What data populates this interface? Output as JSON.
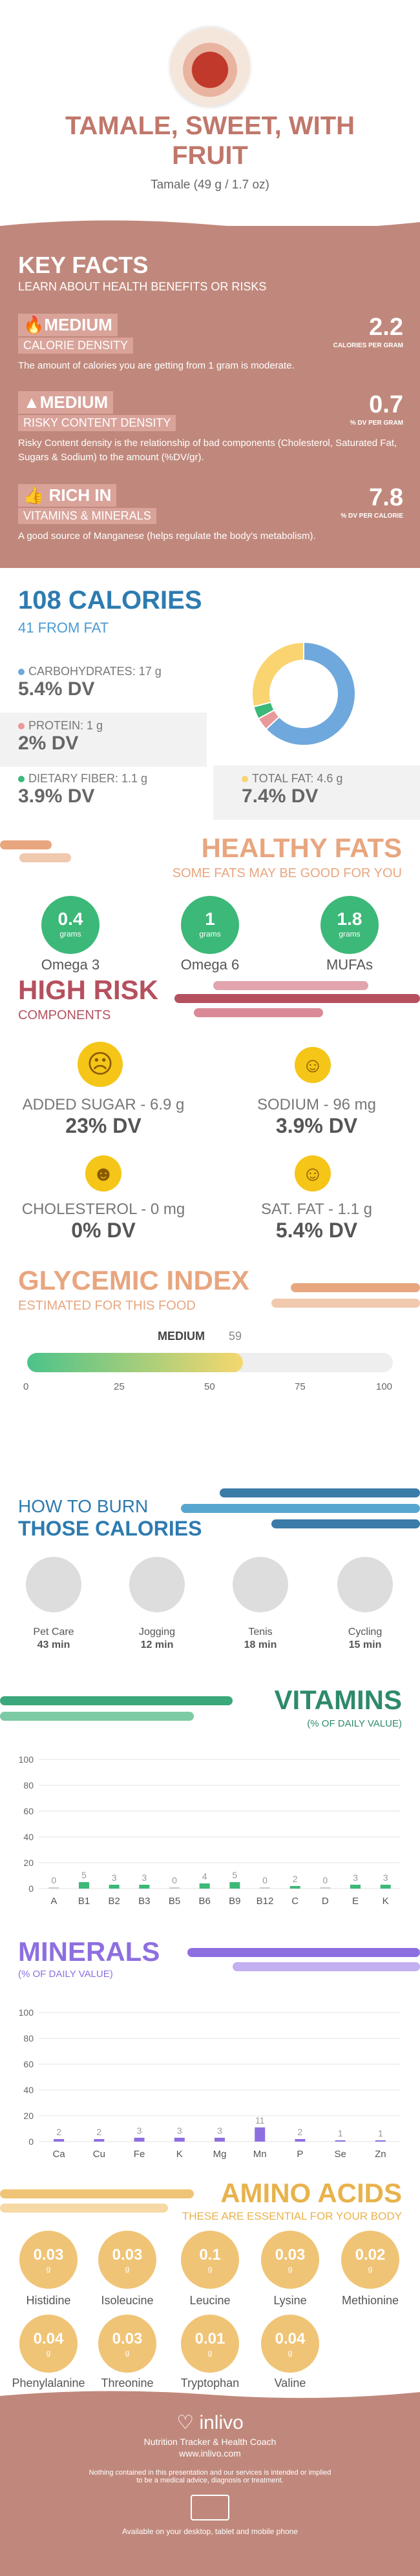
{
  "header": {
    "title_line1": "TAMALE, SWEET, WITH",
    "title_line2": "FRUIT",
    "subtitle": "Tamale (49 g / 1.7 oz)",
    "image": "tamale-photo"
  },
  "key_facts": {
    "title": "KEY FACTS",
    "subtitle": "LEARN ABOUT HEALTH BENEFITS OR RISKS",
    "items": [
      {
        "icon": "flame-icon",
        "level": "MEDIUM",
        "name": "CALORIE DENSITY",
        "value": "2.2",
        "unit": "CALORIES PER GRAM",
        "desc": "The amount of calories you are getting from 1 gram is moderate."
      },
      {
        "icon": "warning-icon",
        "level": "MEDIUM",
        "name": "RISKY CONTENT DENSITY",
        "value": "0.7",
        "unit": "% DV PER GRAM",
        "desc": "Risky Content density is the relationship of bad components (Cholesterol, Saturated Fat, Sugars & Sodium) to the amount (%DV/gr)."
      },
      {
        "icon": "thumbs-up-icon",
        "level": "RICH IN",
        "name": "VITAMINS & MINERALS",
        "value": "7.8",
        "unit": "% DV PER CALORIE",
        "desc": "A good source of Manganese (helps regulate the body's metabolism)."
      }
    ]
  },
  "calories": {
    "title": "108 CALORIES",
    "subtitle": "41 FROM FAT",
    "items": [
      {
        "label": "CARBOHYDRATES: 17 g",
        "dv": "5.4% DV",
        "color": "#6fa8dc"
      },
      {
        "label": "PROTEIN: 1 g",
        "dv": "2% DV",
        "color": "#ea9999"
      },
      {
        "label": "DIETARY FIBER: 1.1 g",
        "dv": "3.9% DV",
        "color": "#3cb878"
      },
      {
        "label": "TOTAL FAT: 4.6 g",
        "dv": "7.4% DV",
        "color": "#f9d471"
      }
    ],
    "donut": [
      {
        "name": "carbohydrates",
        "value": 63,
        "color": "#6fa8dc"
      },
      {
        "name": "protein",
        "value": 4,
        "color": "#ea9999"
      },
      {
        "name": "fiber",
        "value": 4,
        "color": "#3cb878"
      },
      {
        "name": "fat",
        "value": 29,
        "color": "#f9d471"
      }
    ]
  },
  "healthy_fats": {
    "title": "HEALTHY FATS",
    "subtitle": "SOME FATS MAY BE GOOD FOR YOU",
    "items": [
      {
        "value": "0.4",
        "unit": "grams",
        "label": "Omega 3"
      },
      {
        "value": "1",
        "unit": "grams",
        "label": "Omega 6"
      },
      {
        "value": "1.8",
        "unit": "grams",
        "label": "MUFAs"
      }
    ]
  },
  "high_risk": {
    "title": "HIGH RISK",
    "subtitle": "COMPONENTS",
    "items": [
      {
        "label": "ADDED SUGAR - 6.9 g",
        "dv": "23% DV"
      },
      {
        "label": "SODIUM - 96 mg",
        "dv": "3.9% DV"
      },
      {
        "label": "CHOLESTEROL - 0 mg",
        "dv": "0% DV"
      },
      {
        "label": "SAT. FAT - 1.1 g",
        "dv": "5.4% DV"
      }
    ]
  },
  "glycemic": {
    "title": "GLYCEMIC INDEX",
    "subtitle": "ESTIMATED FOR THIS FOOD",
    "level": "MEDIUM",
    "value": "59",
    "ticks": [
      "0",
      "25",
      "50",
      "75",
      "100"
    ],
    "fill": 0.59
  },
  "burn": {
    "title1": "HOW TO BURN",
    "title2": "THOSE CALORIES",
    "items": [
      {
        "label": "Pet Care",
        "time": "43 min",
        "icon": "dog-walking-icon"
      },
      {
        "label": "Jogging",
        "time": "12 min",
        "icon": "jogging-icon"
      },
      {
        "label": "Tenis",
        "time": "18 min",
        "icon": "tennis-icon"
      },
      {
        "label": "Cycling",
        "time": "15 min",
        "icon": "cycling-icon"
      }
    ]
  },
  "vitamins": {
    "title": "VITAMINS",
    "subtitle": "(% OF DAILY VALUE)"
  },
  "minerals": {
    "title": "MINERALS",
    "subtitle": "(% OF DAILY VALUE)"
  },
  "chart_data": [
    {
      "type": "bar",
      "categories": [
        "A",
        "B1",
        "B2",
        "B3",
        "B5",
        "B6",
        "B9",
        "B12",
        "C",
        "D",
        "E",
        "K"
      ],
      "values": [
        0,
        5,
        3,
        3,
        0,
        4,
        5,
        0,
        2,
        0,
        3,
        3
      ],
      "labels": [
        "0",
        "5",
        "3",
        "3",
        "0",
        "4",
        "5",
        "0",
        "2",
        "0",
        "3",
        "3"
      ],
      "ylim": [
        0,
        100
      ],
      "yticks": [
        "0",
        "20",
        "40",
        "60",
        "80",
        "100"
      ],
      "color": "#3cb878"
    },
    {
      "type": "bar",
      "categories": [
        "Ca",
        "Cu",
        "Fe",
        "K",
        "Mg",
        "Mn",
        "P",
        "Se",
        "Zn"
      ],
      "values": [
        2,
        2,
        3,
        3,
        3,
        11,
        2,
        1,
        1
      ],
      "labels": [
        "2",
        "2",
        "3",
        "3",
        "3",
        "11",
        "2",
        "1",
        "1"
      ],
      "ylim": [
        0,
        100
      ],
      "yticks": [
        "0",
        "20",
        "40",
        "60",
        "80",
        "100"
      ],
      "color": "#8e6fe0"
    }
  ],
  "amino": {
    "title": "AMINO ACIDS",
    "subtitle": "THESE ARE ESSENTIAL FOR YOUR BODY",
    "items": [
      {
        "value": "0.03",
        "unit": "g",
        "label": "Histidine"
      },
      {
        "value": "0.03",
        "unit": "g",
        "label": "Isoleucine"
      },
      {
        "value": "0.1",
        "unit": "g",
        "label": "Leucine"
      },
      {
        "value": "0.03",
        "unit": "g",
        "label": "Lysine"
      },
      {
        "value": "0.02",
        "unit": "g",
        "label": "Methionine"
      },
      {
        "value": "0.04",
        "unit": "g",
        "label": "Phenylalanine"
      },
      {
        "value": "0.03",
        "unit": "g",
        "label": "Threonine"
      },
      {
        "value": "0.01",
        "unit": "g",
        "label": "Tryptophan"
      },
      {
        "value": "0.04",
        "unit": "g",
        "label": "Valine"
      }
    ]
  },
  "footer": {
    "brand": "inlivo",
    "tagline": "Nutrition Tracker & Health Coach",
    "url": "www.inlivo.com",
    "disclaimer1": "Nothing contained in this presentation and our services is intended or implied",
    "disclaimer2": "to be a medical advice, diagnosis or treatment.",
    "available": "Available on your desktop, tablet and mobile phone",
    "icons": [
      "heart-icon",
      "devices-icon"
    ]
  }
}
